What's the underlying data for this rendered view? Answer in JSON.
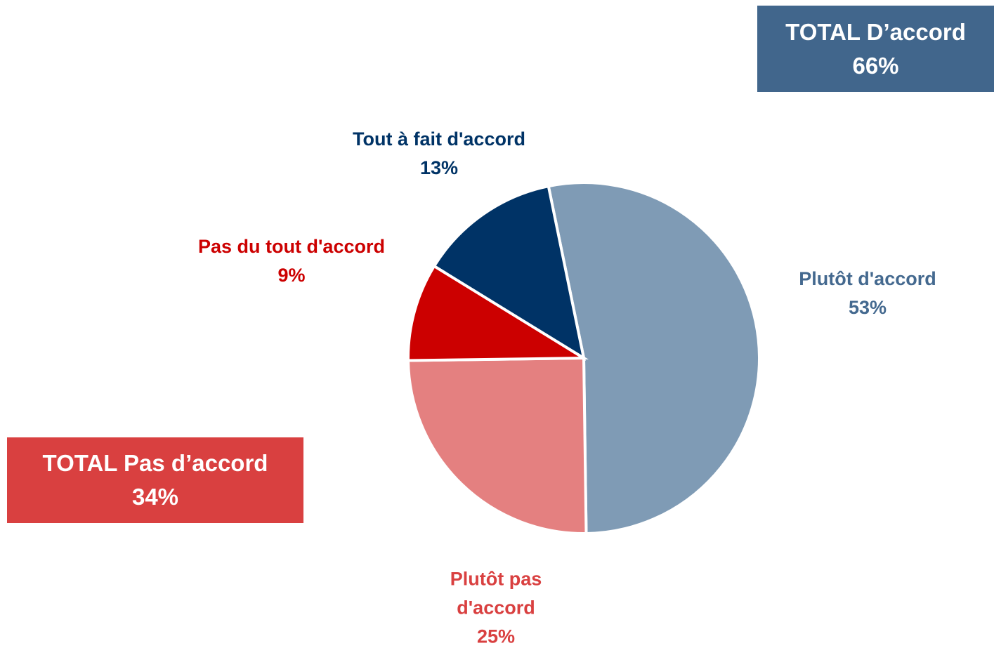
{
  "chart_data": {
    "type": "pie",
    "categories": [
      "Plutôt d'accord",
      "Plutôt pas d'accord",
      "Pas du tout d'accord",
      "Tout à fait d'accord"
    ],
    "values": [
      53,
      25,
      9,
      13
    ],
    "value_labels": [
      "53%",
      "25%",
      "9%",
      "13%"
    ],
    "colors": [
      "#7f9bb5",
      "#e48080",
      "#cc0000",
      "#003366"
    ],
    "label_colors": [
      "#44698f",
      "#d94040",
      "#cc0000",
      "#003366"
    ],
    "annotations": [
      {
        "text": "TOTAL D’accord",
        "value": "66%",
        "color": "#41668c"
      },
      {
        "text": "TOTAL Pas d’accord",
        "value": "34%",
        "color": "#d94040"
      }
    ]
  }
}
